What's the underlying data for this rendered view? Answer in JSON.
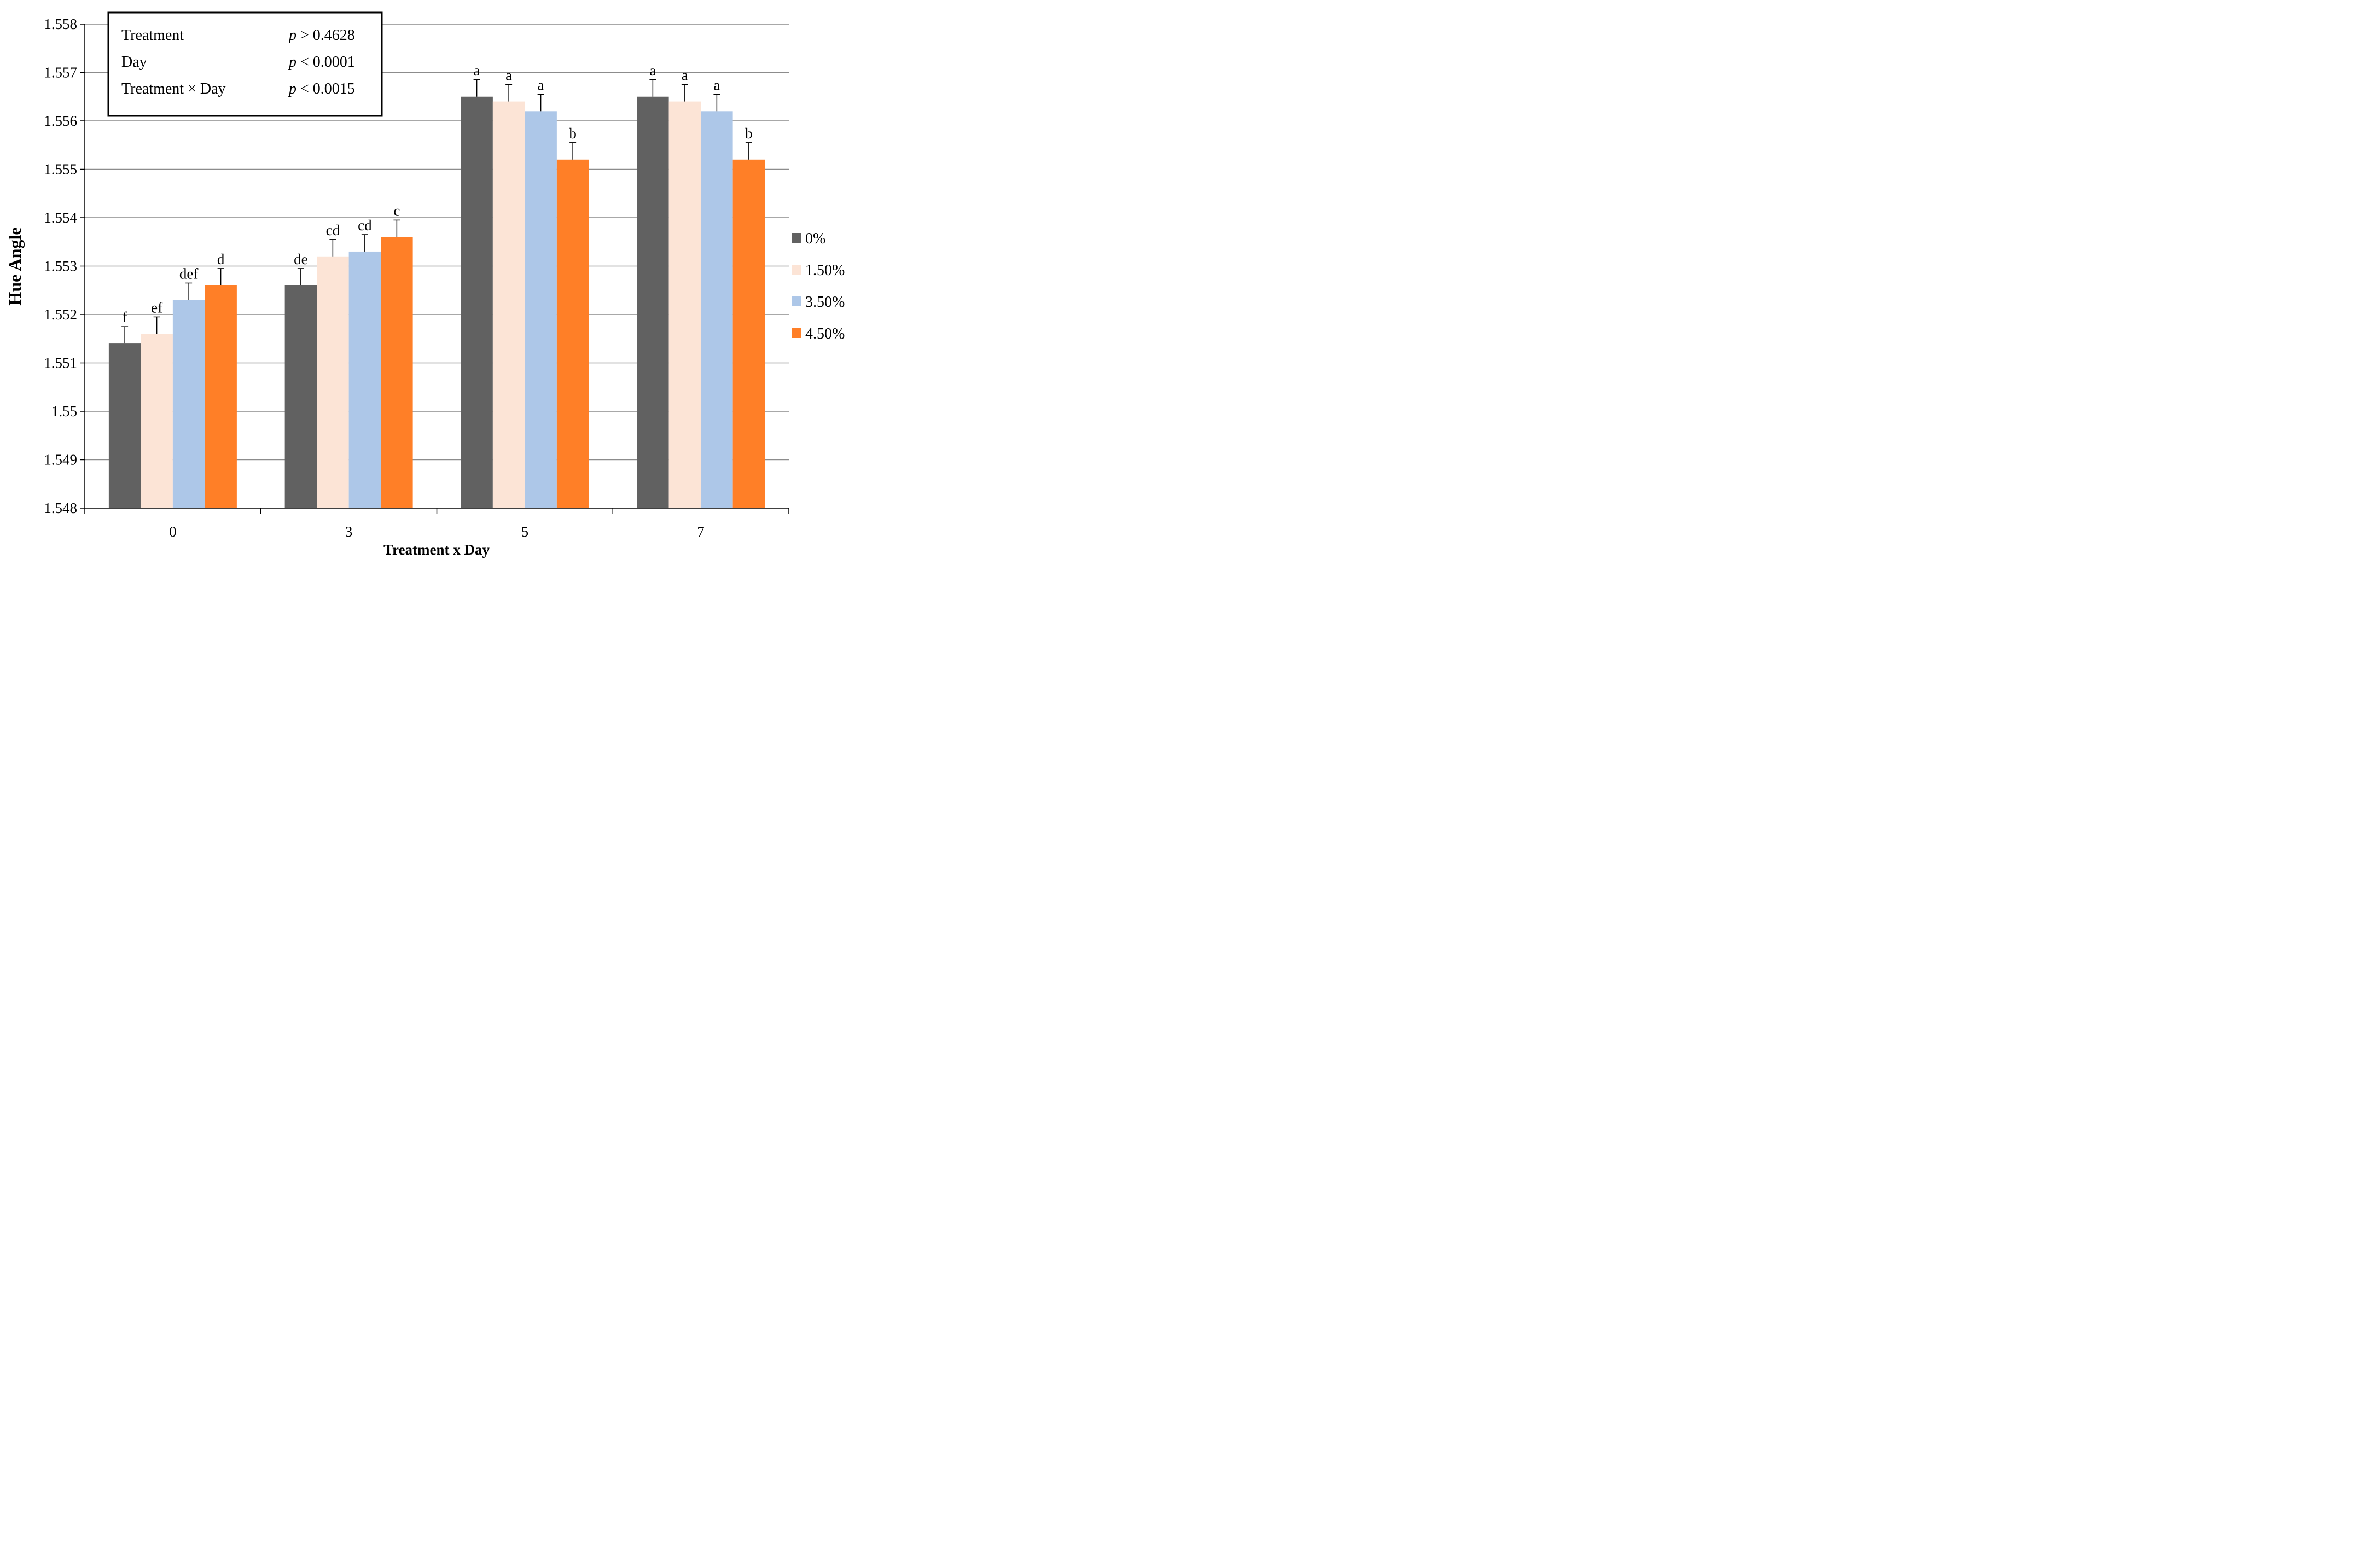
{
  "chart_data": {
    "type": "bar",
    "title": "",
    "xlabel": "Treatment x Day",
    "ylabel": "Hue Angle",
    "ylim": [
      1.548,
      1.558
    ],
    "ytick_step": 0.001,
    "ytick_labels": [
      "1.548",
      "1.549",
      "1.55",
      "1.551",
      "1.552",
      "1.553",
      "1.554",
      "1.555",
      "1.556",
      "1.557",
      "1.558"
    ],
    "grid": true,
    "legend_position": "right",
    "categories": [
      "0",
      "3",
      "5",
      "7"
    ],
    "series": [
      {
        "name": "0%",
        "color": "#616161",
        "values": [
          1.5514,
          1.5526,
          1.5565,
          1.5565
        ],
        "errors": [
          0.00035,
          0.00035,
          0.00035,
          0.00035
        ],
        "labels": [
          "f",
          "de",
          "a",
          "a"
        ]
      },
      {
        "name": "1.50%",
        "color": "#FCE4D6",
        "values": [
          1.5516,
          1.5532,
          1.5564,
          1.5564
        ],
        "errors": [
          0.00035,
          0.00035,
          0.00035,
          0.00035
        ],
        "labels": [
          "ef",
          "cd",
          "a",
          "a"
        ]
      },
      {
        "name": "3.50%",
        "color": "#ADC7E8",
        "values": [
          1.5523,
          1.5533,
          1.5562,
          1.5562
        ],
        "errors": [
          0.00035,
          0.00035,
          0.00035,
          0.00035
        ],
        "labels": [
          "def",
          "cd",
          "a",
          "a"
        ]
      },
      {
        "name": "4.50%",
        "color": "#FF7F27",
        "values": [
          1.5526,
          1.5536,
          1.5552,
          1.5552
        ],
        "errors": [
          0.00035,
          0.00035,
          0.00035,
          0.00035
        ],
        "labels": [
          "d",
          "c",
          "b",
          "b"
        ]
      }
    ],
    "stats_box": [
      {
        "effect": "Treatment",
        "p_symbol": "p",
        "p_text": " > 0.4628"
      },
      {
        "effect": "Day",
        "p_symbol": "p",
        "p_text": " < 0.0001"
      },
      {
        "effect": "Treatment × Day",
        "p_symbol": "p",
        "p_text": " < 0.0015"
      }
    ]
  }
}
